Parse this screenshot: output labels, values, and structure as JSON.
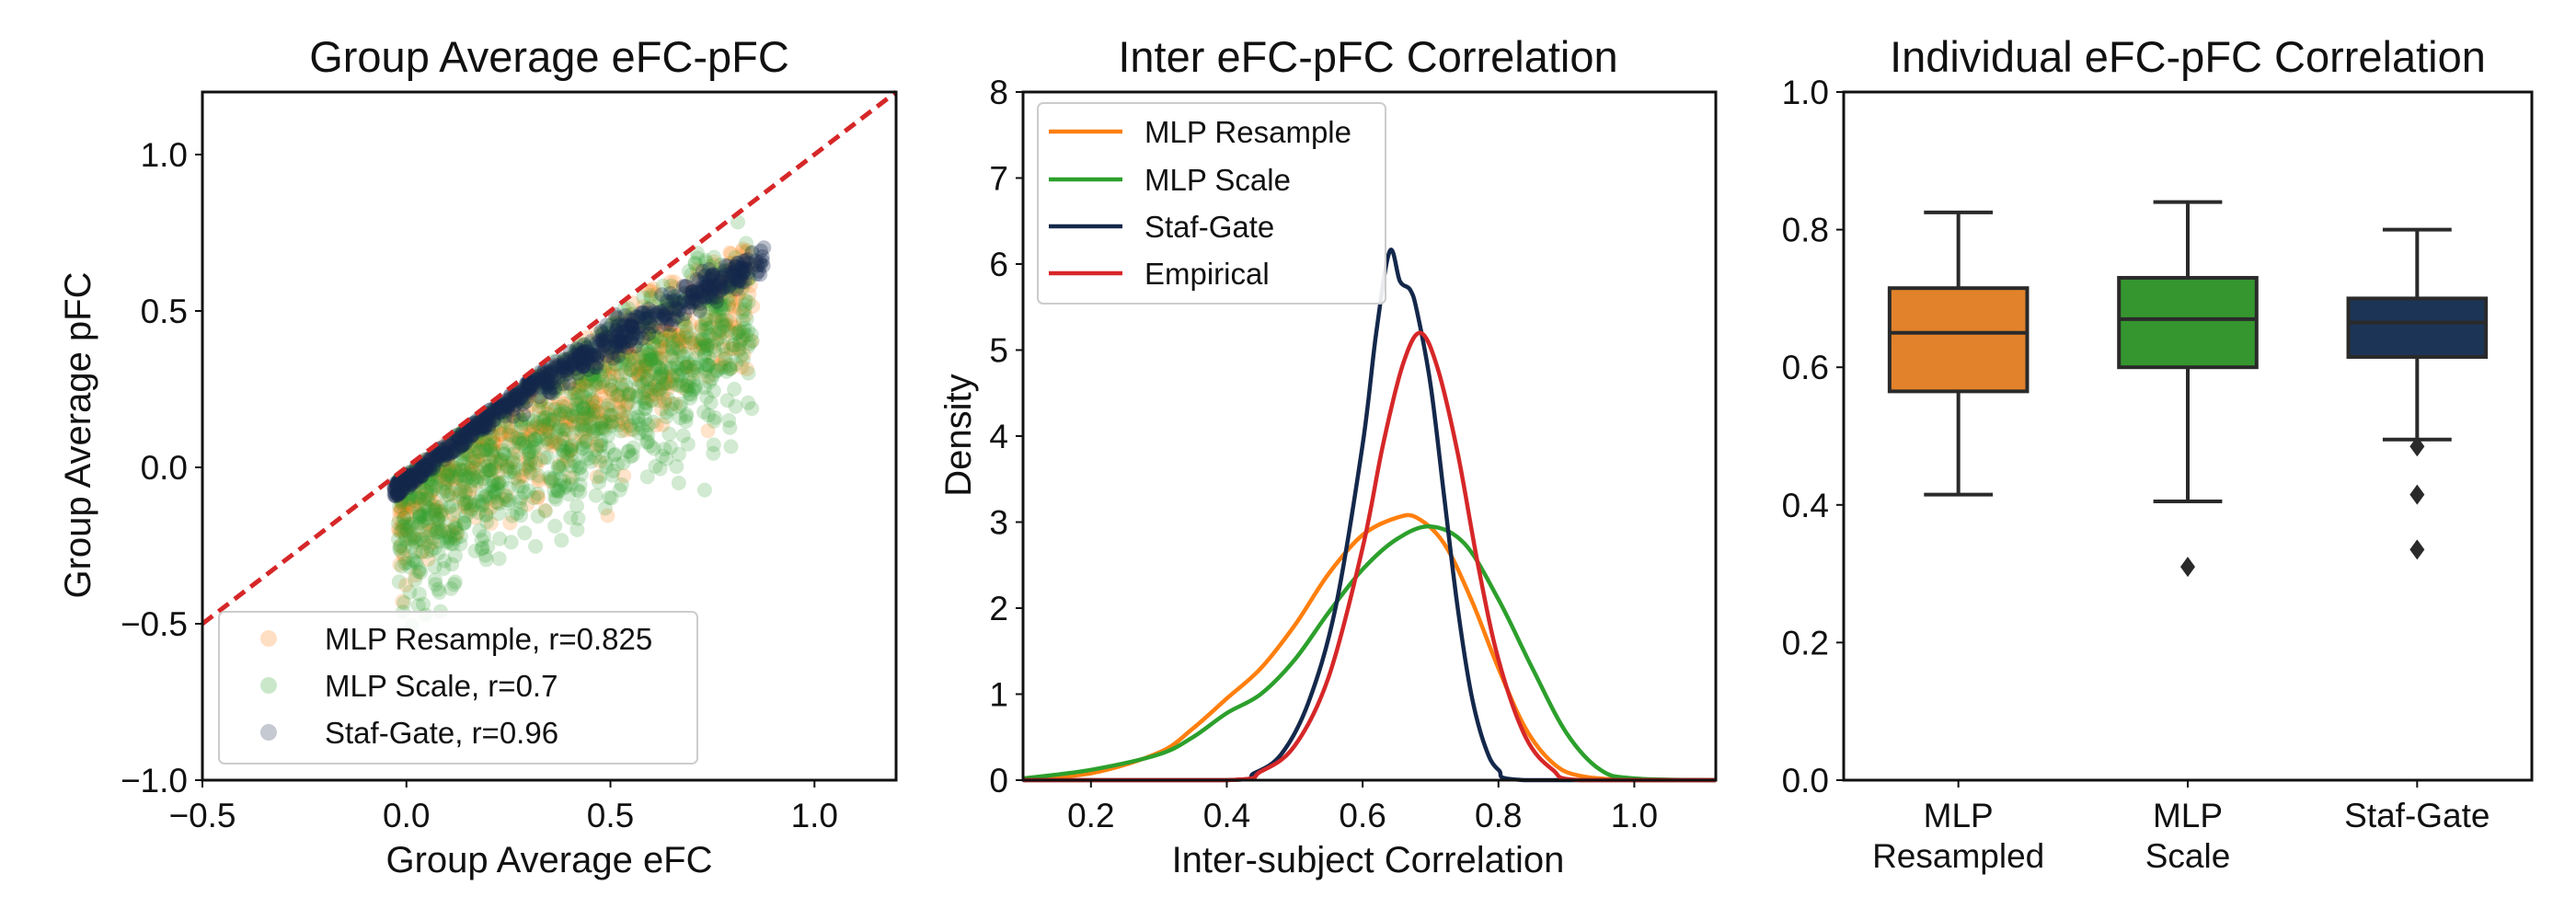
{
  "colors": {
    "mlp_resample": "#ff7f0e",
    "mlp_scale": "#2ca02c",
    "staf_gate": "#14284b",
    "empirical": "#d62728",
    "diagonal": "#d62728",
    "box_resampled": "#e2822b",
    "box_scale": "#35962f",
    "box_staf": "#1c3456"
  },
  "chart_data": [
    {
      "type": "scatter",
      "title": "Group Average eFC-pFC",
      "xlabel": "Group Average eFC",
      "ylabel": "Group Average pFC",
      "xlim": [
        -0.5,
        1.2
      ],
      "ylim": [
        -1.0,
        1.2
      ],
      "xticks": [
        -0.5,
        0.0,
        0.5,
        1.0
      ],
      "xtick_labels": [
        "−0.5",
        "0.0",
        "0.5",
        "1.0"
      ],
      "yticks": [
        -1.0,
        -0.5,
        0.0,
        0.5,
        1.0
      ],
      "ytick_labels": [
        "−1.0",
        "−0.5",
        "0.0",
        "0.5",
        "1.0"
      ],
      "reference_line": "y = x (dashed)",
      "legend_position": "lower-left",
      "series": [
        {
          "name": "MLP Resample",
          "label": "MLP Resample, r=0.825",
          "r": 0.825,
          "color_key": "mlp_resample",
          "slope": 0.75,
          "intercept": -0.09,
          "noise": 0.12,
          "xrange": [
            -0.02,
            0.85
          ],
          "n": 700
        },
        {
          "name": "MLP Scale",
          "label": "MLP Scale, r=0.7",
          "r": 0.7,
          "color_key": "mlp_scale",
          "slope": 0.78,
          "intercept": -0.16,
          "noise": 0.15,
          "xrange": [
            -0.02,
            0.85
          ],
          "n": 1100
        },
        {
          "name": "Staf-Gate",
          "label": "Staf-Gate, r=0.96",
          "r": 0.96,
          "color_key": "staf_gate",
          "slope": 0.72,
          "intercept": 0.04,
          "noise": 0.028,
          "xrange": [
            -0.03,
            0.88
          ],
          "n": 650
        }
      ]
    },
    {
      "type": "line",
      "title": "Inter eFC-pFC Correlation",
      "xlabel": "Inter-subject Correlation",
      "ylabel": "Density",
      "xlim": [
        0.1,
        1.12
      ],
      "ylim": [
        0,
        8
      ],
      "xticks": [
        0.2,
        0.4,
        0.6,
        0.8,
        1.0
      ],
      "xtick_labels": [
        "0.2",
        "0.4",
        "0.6",
        "0.8",
        "1.0"
      ],
      "yticks": [
        0,
        1,
        2,
        3,
        4,
        5,
        6,
        7,
        8
      ],
      "ytick_labels": [
        "0",
        "1",
        "2",
        "3",
        "4",
        "5",
        "6",
        "7",
        "8"
      ],
      "legend_position": "top-left",
      "series": [
        {
          "name": "MLP Resample",
          "color_key": "mlp_resample",
          "x": [
            0.1,
            0.2,
            0.3,
            0.35,
            0.4,
            0.45,
            0.5,
            0.55,
            0.6,
            0.65,
            0.68,
            0.72,
            0.76,
            0.8,
            0.84,
            0.88,
            0.92,
            1.0,
            1.12
          ],
          "y": [
            0.02,
            0.08,
            0.32,
            0.6,
            0.95,
            1.3,
            1.8,
            2.4,
            2.85,
            3.05,
            3.05,
            2.75,
            2.1,
            1.3,
            0.6,
            0.2,
            0.05,
            0.0,
            0.0
          ]
        },
        {
          "name": "MLP Scale",
          "color_key": "mlp_scale",
          "x": [
            0.1,
            0.2,
            0.3,
            0.35,
            0.4,
            0.45,
            0.5,
            0.55,
            0.6,
            0.65,
            0.7,
            0.75,
            0.8,
            0.85,
            0.9,
            0.95,
            1.0,
            1.12
          ],
          "y": [
            0.02,
            0.12,
            0.3,
            0.5,
            0.78,
            1.0,
            1.4,
            1.95,
            2.45,
            2.8,
            2.95,
            2.75,
            2.1,
            1.3,
            0.55,
            0.12,
            0.02,
            0.0
          ]
        },
        {
          "name": "Staf-Gate",
          "color_key": "staf_gate",
          "x": [
            0.1,
            0.4,
            0.44,
            0.48,
            0.52,
            0.56,
            0.6,
            0.62,
            0.64,
            0.655,
            0.67,
            0.68,
            0.7,
            0.72,
            0.74,
            0.76,
            0.78,
            0.8,
            0.84,
            1.12
          ],
          "y": [
            0.0,
            0.0,
            0.08,
            0.3,
            0.9,
            2.0,
            3.9,
            5.2,
            6.15,
            5.8,
            5.7,
            5.45,
            4.6,
            3.3,
            2.0,
            1.0,
            0.4,
            0.12,
            0.0,
            0.0
          ]
        },
        {
          "name": "Empirical",
          "color_key": "empirical",
          "x": [
            0.1,
            0.4,
            0.45,
            0.5,
            0.55,
            0.6,
            0.63,
            0.66,
            0.685,
            0.71,
            0.74,
            0.77,
            0.8,
            0.84,
            0.88,
            0.92,
            1.12
          ],
          "y": [
            0.0,
            0.0,
            0.1,
            0.4,
            1.2,
            2.7,
            3.9,
            4.85,
            5.2,
            4.8,
            3.8,
            2.5,
            1.4,
            0.5,
            0.12,
            0.0,
            0.0
          ]
        }
      ]
    },
    {
      "type": "box",
      "title": "Individual eFC-pFC Correlation",
      "xlabel": "",
      "ylabel": "",
      "ylim": [
        0,
        1.0
      ],
      "yticks": [
        0.0,
        0.2,
        0.4,
        0.6,
        0.8,
        1.0
      ],
      "ytick_labels": [
        "0.0",
        "0.2",
        "0.4",
        "0.6",
        "0.8",
        "1.0"
      ],
      "categories": [
        {
          "lines": [
            "MLP",
            "Resampled"
          ],
          "color_key": "box_resampled",
          "whisker_low": 0.415,
          "q1": 0.565,
          "median": 0.65,
          "q3": 0.715,
          "whisker_high": 0.825,
          "outliers": []
        },
        {
          "lines": [
            "MLP",
            "Scale"
          ],
          "color_key": "box_scale",
          "whisker_low": 0.405,
          "q1": 0.6,
          "median": 0.67,
          "q3": 0.73,
          "whisker_high": 0.84,
          "outliers": [
            0.31
          ]
        },
        {
          "lines": [
            "Staf-Gate"
          ],
          "color_key": "box_staf",
          "whisker_low": 0.495,
          "q1": 0.615,
          "median": 0.665,
          "q3": 0.7,
          "whisker_high": 0.8,
          "outliers": [
            0.485,
            0.415,
            0.335
          ]
        }
      ]
    }
  ]
}
